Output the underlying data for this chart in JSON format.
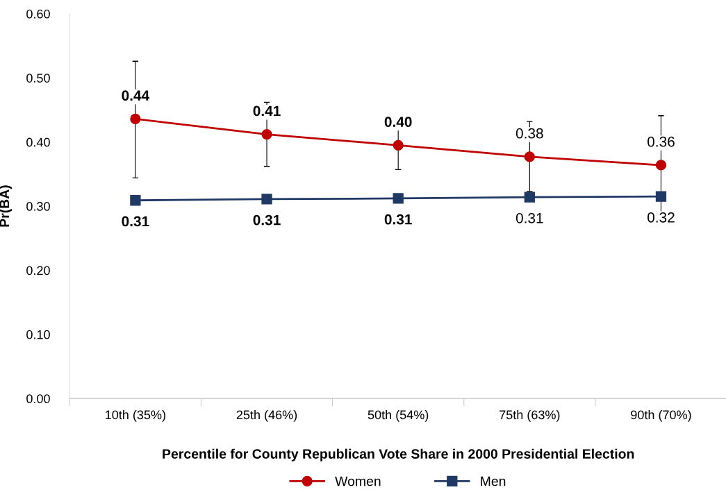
{
  "chart_data": {
    "type": "line",
    "xlabel": "Percentile for County Republican Vote Share in 2000 Presidential Election",
    "ylabel": "Pr(BA)",
    "categories": [
      "10th (35%)",
      "25th (46%)",
      "50th (54%)",
      "75th (63%)",
      "90th (70%)"
    ],
    "ylim": [
      0,
      0.6
    ],
    "yticks": [
      {
        "value": 0,
        "label": "0.00"
      },
      {
        "value": 0.1,
        "label": "0.10"
      },
      {
        "value": 0.2,
        "label": "0.20"
      },
      {
        "value": 0.3,
        "label": "0.30"
      },
      {
        "value": 0.4,
        "label": "0.40"
      },
      {
        "value": 0.5,
        "label": "0.50"
      },
      {
        "value": 0.6,
        "label": "0.60"
      }
    ],
    "grid": false,
    "legend": "bottom",
    "series": [
      {
        "name": "Women",
        "color": "#c00000",
        "marker": "circle",
        "values": [
          0.436,
          0.412,
          0.395,
          0.377,
          0.364
        ],
        "errors": [
          [
            0.344,
            0.526
          ],
          [
            0.362,
            0.462
          ],
          [
            0.357,
            0.432
          ],
          [
            0.323,
            0.432
          ],
          [
            0.287,
            0.441
          ]
        ],
        "value_labels": [
          "0.44",
          "0.41",
          "0.40",
          "0.38",
          "0.36"
        ]
      },
      {
        "name": "Men",
        "color": "#1f3864",
        "marker": "square",
        "values": [
          0.309,
          0.311,
          0.312,
          0.314,
          0.315
        ],
        "value_labels": [
          "0.31",
          "0.31",
          "0.31",
          "0.31",
          "0.32"
        ]
      }
    ]
  }
}
